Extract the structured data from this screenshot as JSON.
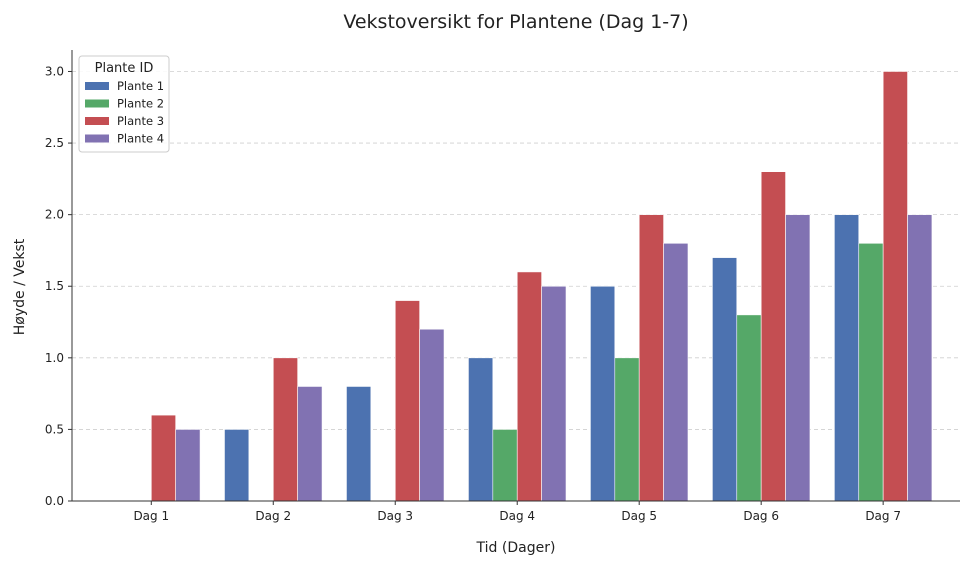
{
  "chart_data": {
    "type": "bar",
    "title": "Vekstoversikt for Plantene (Dag 1-7)",
    "xlabel": "Tid (Dager)",
    "ylabel": "Høyde / Vekst",
    "categories": [
      "Dag 1",
      "Dag 2",
      "Dag 3",
      "Dag 4",
      "Dag 5",
      "Dag 6",
      "Dag 7"
    ],
    "ylim": [
      0,
      3.15
    ],
    "yticks": [
      0.0,
      0.5,
      1.0,
      1.5,
      2.0,
      2.5,
      3.0
    ],
    "ytick_labels": [
      "0.0",
      "0.5",
      "1.0",
      "1.5",
      "2.0",
      "2.5",
      "3.0"
    ],
    "grid": "y-dashed",
    "legend": {
      "title": "Plante ID",
      "placement": "top-left"
    },
    "series": [
      {
        "name": "Plante 1",
        "color": "#4C72B0",
        "values": [
          0,
          0.5,
          0.8,
          1.0,
          1.5,
          1.7,
          2.0
        ]
      },
      {
        "name": "Plante 2",
        "color": "#55A868",
        "values": [
          0,
          0,
          0,
          0.5,
          1.0,
          1.3,
          1.8
        ]
      },
      {
        "name": "Plante 3",
        "color": "#C44E52",
        "values": [
          0.6,
          1.0,
          1.4,
          1.6,
          2.0,
          2.3,
          3.0
        ]
      },
      {
        "name": "Plante 4",
        "color": "#8172B2",
        "values": [
          0.5,
          0.8,
          1.2,
          1.5,
          1.8,
          2.0,
          2.0
        ]
      }
    ]
  }
}
